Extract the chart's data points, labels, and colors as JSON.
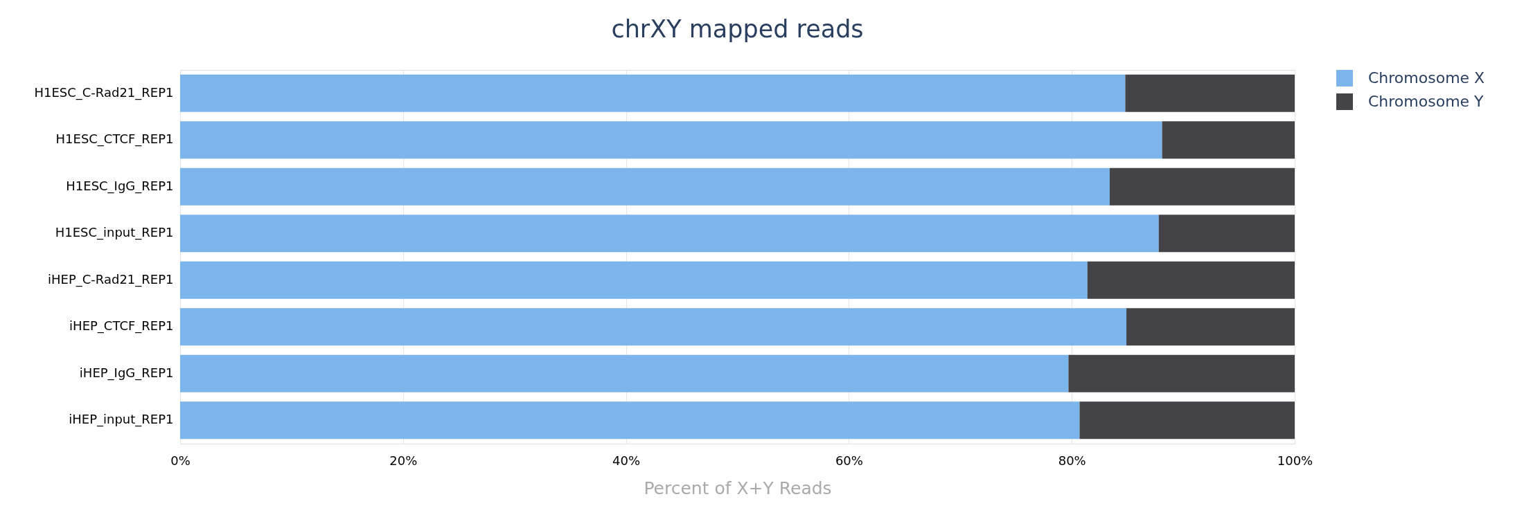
{
  "chart_data": {
    "type": "bar",
    "title": "chrXY mapped reads",
    "xlabel": "Percent of X+Y Reads",
    "orientation": "horizontal",
    "stacked": true,
    "categories": [
      "H1ESC_C-Rad21_REP1",
      "H1ESC_CTCF_REP1",
      "H1ESC_IgG_REP1",
      "H1ESC_input_REP1",
      "iHEP_C-Rad21_REP1",
      "iHEP_CTCF_REP1",
      "iHEP_IgG_REP1",
      "iHEP_input_REP1"
    ],
    "series": [
      {
        "name": "Chromosome X",
        "color": "#7cb5ec",
        "values": [
          84.8,
          88.1,
          83.4,
          87.8,
          81.4,
          84.9,
          79.7,
          80.7
        ]
      },
      {
        "name": "Chromosome Y",
        "color": "#434348",
        "values": [
          15.2,
          11.9,
          16.6,
          12.2,
          18.6,
          15.1,
          20.3,
          19.3
        ]
      }
    ],
    "xlim": [
      0,
      100
    ],
    "xticks": [
      {
        "value": 0,
        "label": "0%"
      },
      {
        "value": 20,
        "label": "20%"
      },
      {
        "value": 40,
        "label": "40%"
      },
      {
        "value": 60,
        "label": "60%"
      },
      {
        "value": 80,
        "label": "80%"
      },
      {
        "value": 100,
        "label": "100%"
      }
    ],
    "grid": "x",
    "legend": "top right"
  }
}
